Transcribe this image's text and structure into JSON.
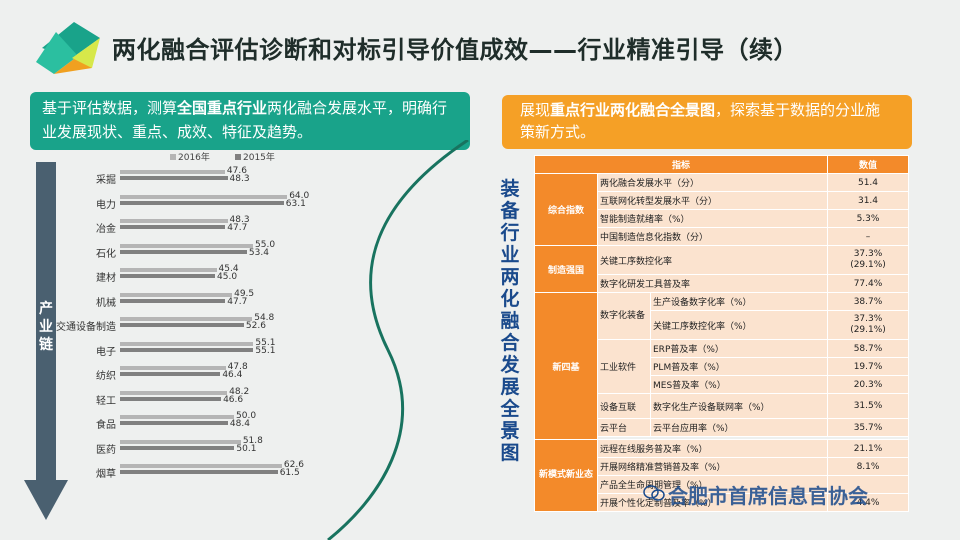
{
  "title": "两化融合评估诊断和对标引导价值成效——",
  "title_sub": "行业精准引导（续）",
  "left_box": {
    "p1": "基于评估数据，测算",
    "p1_bold": "全国重点行业",
    "p2": "两化融合发展水平，明确行业发展现状、重点、成效、特征及趋势。"
  },
  "right_box": {
    "p1": "展现",
    "p1_bold": "重点行业两化融合全景图",
    "p2": "，探索基于数据的分业施策新方式。"
  },
  "legend": {
    "s2016": "2016年",
    "s2015": "2015年"
  },
  "arrow_label": "产业链",
  "vertical_title": "装备行业两化融合发展全景图",
  "chart_data": {
    "type": "bar",
    "orientation": "horizontal",
    "categories": [
      "采掘",
      "电力",
      "冶金",
      "石化",
      "建材",
      "机械",
      "交通设备制造",
      "电子",
      "纺织",
      "轻工",
      "食品",
      "医药",
      "烟草"
    ],
    "series": [
      {
        "name": "2016年",
        "values": [
          47.6,
          64.0,
          48.3,
          55.0,
          45.4,
          49.5,
          54.8,
          55.1,
          47.8,
          48.2,
          50.0,
          51.8,
          62.6
        ]
      },
      {
        "name": "2015年",
        "values": [
          48.3,
          63.1,
          47.7,
          53.4,
          45.0,
          47.7,
          52.6,
          55.1,
          46.4,
          46.6,
          48.4,
          50.1,
          61.5
        ]
      }
    ],
    "colors": [
      "#b5b5b5",
      "#808080"
    ]
  },
  "table": {
    "header": [
      "指标",
      "数值"
    ],
    "cats": {
      "c1": "综合指数",
      "c2": "制造强国",
      "c3": "新四基",
      "c4": "新模式新业态"
    },
    "rows": [
      {
        "label": "两化融合发展水平（分）",
        "value": "51.4"
      },
      {
        "label": "互联网化转型发展水平（分）",
        "value": "31.4"
      },
      {
        "label": "智能制造就绪率（%）",
        "value": "5.3%"
      },
      {
        "label": "中国制造信息化指数（分）",
        "value": "–"
      },
      {
        "label": "关键工序数控化率",
        "value": "37.3%\n(29.1%)"
      },
      {
        "label": "数字化研发工具普及率",
        "value": "77.4%"
      }
    ],
    "sub1": "数字化装备",
    "sub1_rows": [
      {
        "label": "生产设备数字化率（%）",
        "value": "38.7%"
      },
      {
        "label": "关键工序数控化率（%）",
        "value": "37.3%\n(29.1%)"
      }
    ],
    "sub2": "工业软件",
    "sub2_rows": [
      {
        "label": "ERP普及率（%）",
        "value": "58.7%"
      },
      {
        "label": "PLM普及率（%）",
        "value": "19.7%"
      },
      {
        "label": "MES普及率（%）",
        "value": "20.3%"
      }
    ],
    "sub3": "设备互联",
    "sub3_row": {
      "label": "数字化生产设备联网率（%）",
      "value": "31.5%"
    },
    "sub4": "云平台",
    "sub4_row": {
      "label": "云平台应用率（%）",
      "value": "35.7%"
    },
    "c4_rows": [
      {
        "label": "远程在线服务普及率（%）",
        "value": "21.1%"
      },
      {
        "label": "开展网络精准营销普及率（%）",
        "value": "8.1%"
      },
      {
        "label": "产品全生命周期管理（%）",
        "value": ""
      },
      {
        "label": "开展个性化定制普及率（%）",
        "value": "4.4%"
      }
    ]
  },
  "watermark": "合肥市首席信息官协会"
}
